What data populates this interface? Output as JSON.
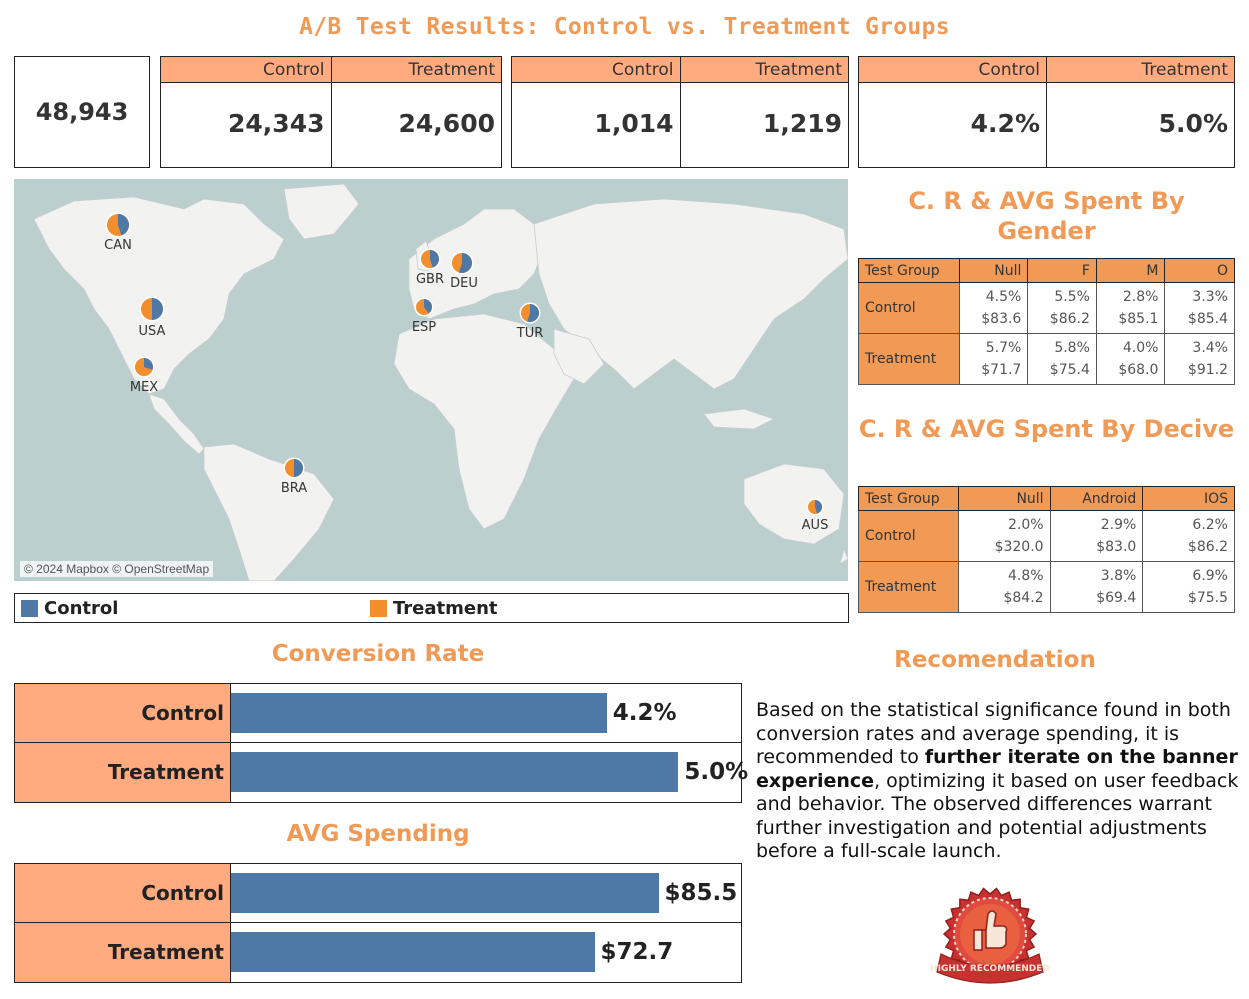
{
  "title": "A/B Test Results: Control vs. Treatment Groups",
  "colors": {
    "control": "#4E79A7",
    "treatment": "#F28E2B",
    "accent": "#F09A56",
    "header": "#FFAA7F"
  },
  "kpis": {
    "total": "48,943",
    "users": {
      "control_label": "Control",
      "treatment_label": "Treatment",
      "control": "24,343",
      "treatment": "24,600"
    },
    "conversions": {
      "control_label": "Control",
      "treatment_label": "Treatment",
      "control": "1,014",
      "treatment": "1,219"
    },
    "rate": {
      "control_label": "Control",
      "treatment_label": "Treatment",
      "control": "4.2%",
      "treatment": "5.0%"
    }
  },
  "map": {
    "attribution": "© 2024 Mapbox © OpenStreetMap",
    "countries": [
      {
        "code": "CAN",
        "control_share": 0.45
      },
      {
        "code": "USA",
        "control_share": 0.5
      },
      {
        "code": "MEX",
        "control_share": 0.3
      },
      {
        "code": "BRA",
        "control_share": 0.5
      },
      {
        "code": "GBR",
        "control_share": 0.45
      },
      {
        "code": "DEU",
        "control_share": 0.55
      },
      {
        "code": "ESP",
        "control_share": 0.4
      },
      {
        "code": "TUR",
        "control_share": 0.55
      },
      {
        "code": "AUS",
        "control_share": 0.45
      }
    ]
  },
  "legend": {
    "control": "Control",
    "treatment": "Treatment"
  },
  "gender_section": {
    "title": "C. R & AVG Spent By Gender",
    "headers": [
      "Test Group",
      "Null",
      "F",
      "M",
      "O"
    ],
    "rows": [
      {
        "group": "Control",
        "rates": [
          "4.5%",
          "5.5%",
          "2.8%",
          "3.3%"
        ],
        "spend": [
          "$83.6",
          "$86.2",
          "$85.1",
          "$85.4"
        ]
      },
      {
        "group": "Treatment",
        "rates": [
          "5.7%",
          "5.8%",
          "4.0%",
          "3.4%"
        ],
        "spend": [
          "$71.7",
          "$75.4",
          "$68.0",
          "$91.2"
        ]
      }
    ]
  },
  "device_section": {
    "title": "C. R & AVG Spent By Decive",
    "headers": [
      "Test Group",
      "Null",
      "Android",
      "IOS"
    ],
    "rows": [
      {
        "group": "Control",
        "rates": [
          "2.0%",
          "2.9%",
          "6.2%"
        ],
        "spend": [
          "$320.0",
          "$83.0",
          "$86.2"
        ]
      },
      {
        "group": "Treatment",
        "rates": [
          "4.8%",
          "3.8%",
          "6.9%"
        ],
        "spend": [
          "$84.2",
          "$69.4",
          "$75.5"
        ]
      }
    ]
  },
  "chart_data": [
    {
      "type": "bar",
      "title": "Conversion Rate",
      "categories": [
        "Control",
        "Treatment"
      ],
      "values": [
        4.2,
        5.0
      ],
      "labels": [
        "4.2%",
        "5.0%"
      ],
      "xlim": [
        0,
        5.7
      ]
    },
    {
      "type": "bar",
      "title": "AVG Spending",
      "categories": [
        "Control",
        "Treatment"
      ],
      "values": [
        85.5,
        72.7
      ],
      "labels": [
        "$85.5",
        "$72.7"
      ],
      "xlim": [
        0,
        102
      ]
    }
  ],
  "recommendation": {
    "title": "Recomendation",
    "text_before": "Based on the statistical significance found in both conversion rates and average spending, it is recommended to ",
    "text_bold": "further iterate on the banner experience",
    "text_after": ", optimizing it based on user feedback and behavior. The observed differences warrant further investigation and potential adjustments before a full-scale launch.",
    "badge_text": "HIGHLY RECOMMENDED"
  }
}
